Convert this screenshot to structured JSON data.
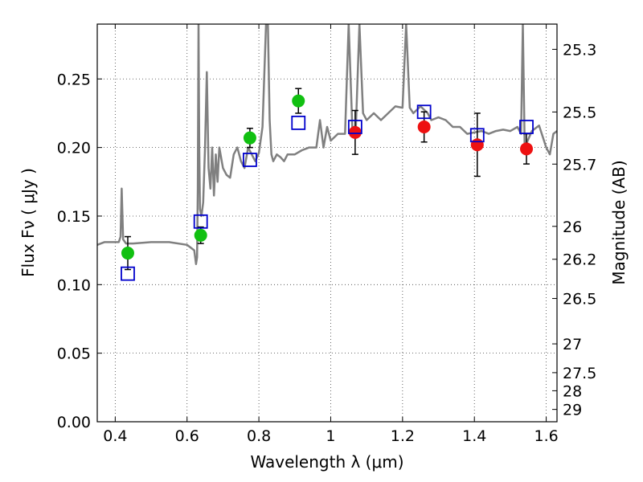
{
  "chart_data": {
    "type": "scatter",
    "title": "",
    "xlabel": "Wavelength  λ (μm)",
    "ylabel": "Flux  Fν  ( μJy )",
    "ylabel_right": "Magnitude (AB)",
    "xlim": [
      0.35,
      1.63
    ],
    "ylim": [
      0.0,
      0.29
    ],
    "grid": true,
    "x_ticks": [
      0.4,
      0.6,
      0.8,
      1.0,
      1.2,
      1.4,
      1.6
    ],
    "x_tick_labels": [
      "0.4",
      "0.6",
      "0.8",
      "1",
      "1.2",
      "1.4",
      "1.6"
    ],
    "y_ticks": [
      0.0,
      0.05,
      0.1,
      0.15,
      0.2,
      0.25
    ],
    "y_tick_labels": [
      "0.00",
      "0.05",
      "0.10",
      "0.15",
      "0.20",
      "0.25"
    ],
    "right_ticks": [
      {
        "label": "25.3",
        "flux": 0.2716
      },
      {
        "label": "25.5",
        "flux": 0.2259
      },
      {
        "label": "25.7",
        "flux": 0.1879
      },
      {
        "label": "26",
        "flux": 0.1425
      },
      {
        "label": "26.2",
        "flux": 0.1185
      },
      {
        "label": "26.5",
        "flux": 0.0899
      },
      {
        "label": "27",
        "flux": 0.0568
      },
      {
        "label": "27.5",
        "flux": 0.0358
      },
      {
        "label": "28",
        "flux": 0.0226
      },
      {
        "label": "29",
        "flux": 0.009
      }
    ],
    "colors": {
      "spectrum": "#808080",
      "green": "#11c011",
      "red": "#ee1111",
      "model": "#0000cc",
      "error": "#000000"
    },
    "series": [
      {
        "kind": "green-points",
        "x": [
          0.435,
          0.638,
          0.775,
          0.91
        ],
        "y": [
          0.123,
          0.136,
          0.207,
          0.234
        ],
        "err": [
          0.012,
          0.006,
          0.007,
          0.009
        ]
      },
      {
        "kind": "red-points",
        "x": [
          1.068,
          1.26,
          1.408,
          1.545
        ],
        "y": [
          0.211,
          0.215,
          0.202,
          0.199
        ],
        "err": [
          0.016,
          0.011,
          0.023,
          0.011
        ]
      },
      {
        "kind": "model-squares",
        "x": [
          0.435,
          0.638,
          0.775,
          0.91,
          1.068,
          1.26,
          1.408,
          1.545
        ],
        "y": [
          0.108,
          0.146,
          0.191,
          0.218,
          0.215,
          0.226,
          0.209,
          0.215
        ]
      },
      {
        "kind": "spectrum",
        "x": [
          0.35,
          0.37,
          0.39,
          0.41,
          0.415,
          0.418,
          0.422,
          0.43,
          0.45,
          0.5,
          0.55,
          0.6,
          0.62,
          0.625,
          0.628,
          0.63,
          0.632,
          0.634,
          0.636,
          0.64,
          0.645,
          0.65,
          0.655,
          0.66,
          0.665,
          0.67,
          0.675,
          0.68,
          0.685,
          0.69,
          0.7,
          0.71,
          0.72,
          0.73,
          0.74,
          0.75,
          0.76,
          0.77,
          0.78,
          0.79,
          0.8,
          0.81,
          0.82,
          0.825,
          0.83,
          0.835,
          0.84,
          0.85,
          0.86,
          0.87,
          0.88,
          0.9,
          0.92,
          0.94,
          0.96,
          0.97,
          0.98,
          0.99,
          1.0,
          1.02,
          1.04,
          1.05,
          1.06,
          1.07,
          1.08,
          1.09,
          1.1,
          1.12,
          1.14,
          1.16,
          1.18,
          1.2,
          1.21,
          1.22,
          1.23,
          1.25,
          1.27,
          1.28,
          1.3,
          1.32,
          1.34,
          1.36,
          1.38,
          1.4,
          1.42,
          1.44,
          1.46,
          1.48,
          1.5,
          1.52,
          1.53,
          1.535,
          1.54,
          1.56,
          1.58,
          1.6,
          1.61,
          1.62,
          1.63
        ],
        "y": [
          0.129,
          0.131,
          0.131,
          0.131,
          0.135,
          0.17,
          0.133,
          0.13,
          0.13,
          0.131,
          0.131,
          0.129,
          0.125,
          0.115,
          0.12,
          0.17,
          0.29,
          0.2,
          0.155,
          0.15,
          0.16,
          0.2,
          0.255,
          0.185,
          0.17,
          0.2,
          0.165,
          0.195,
          0.175,
          0.2,
          0.185,
          0.18,
          0.178,
          0.195,
          0.2,
          0.19,
          0.185,
          0.2,
          0.195,
          0.19,
          0.196,
          0.215,
          0.29,
          0.29,
          0.22,
          0.195,
          0.19,
          0.195,
          0.193,
          0.19,
          0.195,
          0.195,
          0.198,
          0.2,
          0.2,
          0.22,
          0.2,
          0.215,
          0.205,
          0.21,
          0.21,
          0.29,
          0.215,
          0.215,
          0.29,
          0.225,
          0.22,
          0.225,
          0.22,
          0.225,
          0.23,
          0.229,
          0.29,
          0.229,
          0.225,
          0.23,
          0.225,
          0.22,
          0.222,
          0.22,
          0.215,
          0.215,
          0.21,
          0.211,
          0.212,
          0.21,
          0.212,
          0.213,
          0.212,
          0.215,
          0.21,
          0.29,
          0.2,
          0.212,
          0.216,
          0.2,
          0.195,
          0.21,
          0.212
        ]
      }
    ]
  }
}
